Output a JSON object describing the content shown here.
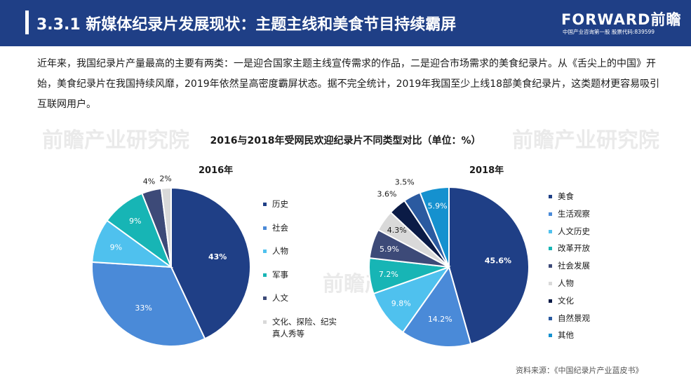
{
  "header": {
    "title": "3.3.1 新媒体纪录片发展现状：主题主线和美食节目持续霸屏",
    "logo_text": "FORWARD前瞻",
    "logo_sub": "中国产业咨询第一股  股票代码:839599"
  },
  "intro": "近年来，我国纪录片产量最高的主要有两类：一是迎合国家主题主线宣传需求的作品，二是迎合市场需求的美食纪录片。从《舌尖上的中国》开始，美食纪录片在我国持续风靡，2019年依然呈高密度霸屏状态。据不完全统计，2019年我国至少上线18部美食纪录片，这类题材更容易吸引互联网用户。",
  "watermark": "前瞻产业研究院",
  "source": "资料来源：《中国纪录片产业蓝皮书》",
  "chart_data": {
    "type": "pie",
    "title": "2016与2018年受网民欢迎纪录片不同类型对比（单位：%）",
    "charts": [
      {
        "title": "2016年",
        "slices": [
          {
            "name": "历史",
            "value": 43,
            "label": "43%",
            "color": "#1f3f86"
          },
          {
            "name": "社会",
            "value": 33,
            "label": "33%",
            "color": "#4a8ad8"
          },
          {
            "name": "人物",
            "value": 9,
            "label": "9%",
            "color": "#4fc1ee"
          },
          {
            "name": "军事",
            "value": 9,
            "label": "9%",
            "color": "#17b5b5"
          },
          {
            "name": "人文",
            "value": 4,
            "label": "4%",
            "color": "#3d4a78"
          },
          {
            "name": "文化、探险、纪实真人秀等",
            "value": 2,
            "label": "2%",
            "color": "#d9d9d9"
          }
        ]
      },
      {
        "title": "2018年",
        "slices": [
          {
            "name": "美食",
            "value": 45.6,
            "label": "45.6%",
            "color": "#1f3f86"
          },
          {
            "name": "生活观察",
            "value": 14.2,
            "label": "14.2%",
            "color": "#4a8ad8"
          },
          {
            "name": "人文历史",
            "value": 9.8,
            "label": "9.8%",
            "color": "#4fc1ee"
          },
          {
            "name": "改革开放",
            "value": 7.2,
            "label": "7.2%",
            "color": "#17b5b5"
          },
          {
            "name": "社会发展",
            "value": 5.9,
            "label": "5.9%",
            "color": "#3d4a78"
          },
          {
            "name": "人物",
            "value": 4.3,
            "label": "4.3%",
            "color": "#d9d9d9"
          },
          {
            "name": "文化",
            "value": 3.6,
            "label": "3.6%",
            "color": "#0b1b46"
          },
          {
            "name": "自然景观",
            "value": 3.5,
            "label": "3.5%",
            "color": "#2b5aa0"
          },
          {
            "name": "其他",
            "value": 5.9,
            "label": "5.9%",
            "color": "#1591cf"
          }
        ]
      }
    ]
  }
}
